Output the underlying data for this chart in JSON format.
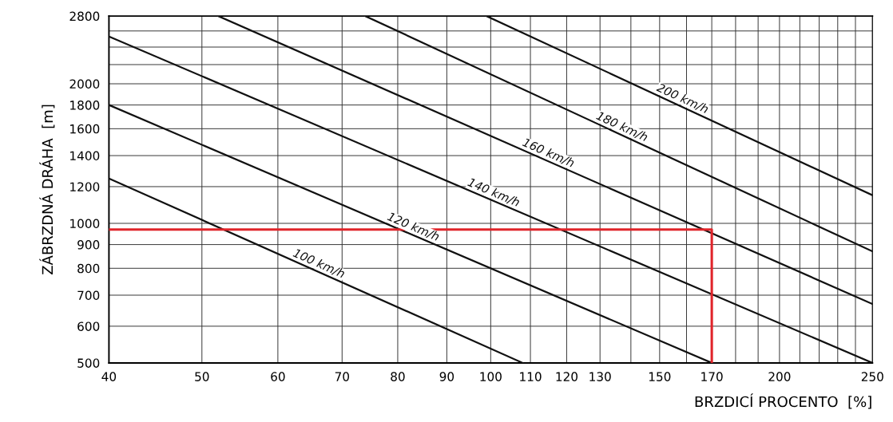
{
  "chart_data": {
    "type": "line",
    "xlabel": "BRZDICÍ PROCENTO  [%]",
    "ylabel": "ZÁBRZDNÁ DRÁHA  [m]",
    "log": "xy",
    "grid": true,
    "marker": "none",
    "line_style": "solid",
    "xlim": [
      40,
      250
    ],
    "ylim": [
      500,
      2800
    ],
    "xticks": [
      40,
      50,
      60,
      70,
      80,
      90,
      100,
      110,
      120,
      130,
      {
        "value": 140,
        "label": null
      },
      150,
      {
        "value": 160,
        "label": null
      },
      170,
      {
        "value": 180,
        "label": null
      },
      {
        "value": 190,
        "label": null
      },
      200,
      {
        "value": 210,
        "label": null
      },
      {
        "value": 220,
        "label": null
      },
      {
        "value": 230,
        "label": null
      },
      {
        "value": 240,
        "label": null
      },
      250
    ],
    "yticks": [
      500,
      600,
      700,
      800,
      900,
      1000,
      1200,
      1400,
      1600,
      1800,
      2000,
      {
        "value": 2200,
        "label": null
      },
      {
        "value": 2400,
        "label": null
      },
      {
        "value": 2600,
        "label": null
      },
      2800
    ],
    "series": [
      {
        "name": "100 km/h",
        "color": "#111111",
        "x": [
          40,
          108
        ],
        "values": [
          1250,
          500
        ]
      },
      {
        "name": "120 km/h",
        "color": "#111111",
        "x": [
          40,
          170
        ],
        "values": [
          1800,
          500
        ]
      },
      {
        "name": "140 km/h",
        "color": "#111111",
        "x": [
          40,
          250
        ],
        "values": [
          2530,
          500
        ]
      },
      {
        "name": "160 km/h",
        "color": "#111111",
        "x": [
          52,
          250
        ],
        "values": [
          2800,
          670
        ]
      },
      {
        "name": "180 km/h",
        "color": "#111111",
        "x": [
          74,
          250
        ],
        "values": [
          2800,
          870
        ]
      },
      {
        "name": "200 km/h",
        "color": "#111111",
        "x": [
          99,
          250
        ],
        "values": [
          2800,
          1150
        ]
      },
      {
        "color": "#e0242a",
        "x": [
          40,
          170,
          170
        ],
        "values": [
          970,
          970,
          500
        ]
      }
    ]
  }
}
